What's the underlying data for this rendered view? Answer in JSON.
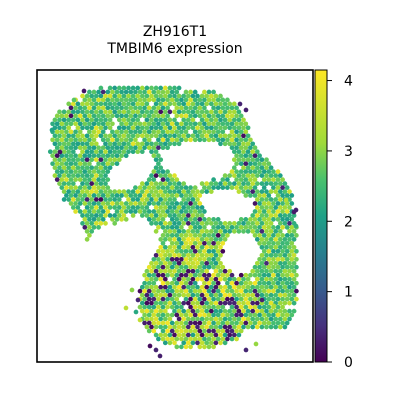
{
  "chart_data": {
    "type": "scatter",
    "subtype": "spatial hex-spot map",
    "title": "ZH916T1",
    "subtitle": "TMBIM6 expression",
    "xlabel": "",
    "ylabel": "",
    "axes_ticks": "none",
    "colormap": "viridis",
    "colorbar": {
      "range": [
        0,
        4.15
      ],
      "ticks": [
        0,
        1,
        2,
        3,
        4
      ],
      "tick_labels": [
        "0",
        "1",
        "2",
        "3",
        "4"
      ],
      "placement": "right"
    },
    "value_summary": {
      "dominant_range": [
        2,
        3.2
      ],
      "upper_tissue_typical": 2.6,
      "lower_cluster_note": "mixed values spanning 0 to 4; many spots near 0 (dark purple) and near 3.5–4 (yellow-green)"
    },
    "grid": false,
    "legend": "colorbar"
  },
  "colors": {
    "frame": "#000000",
    "background": "#ffffff"
  }
}
